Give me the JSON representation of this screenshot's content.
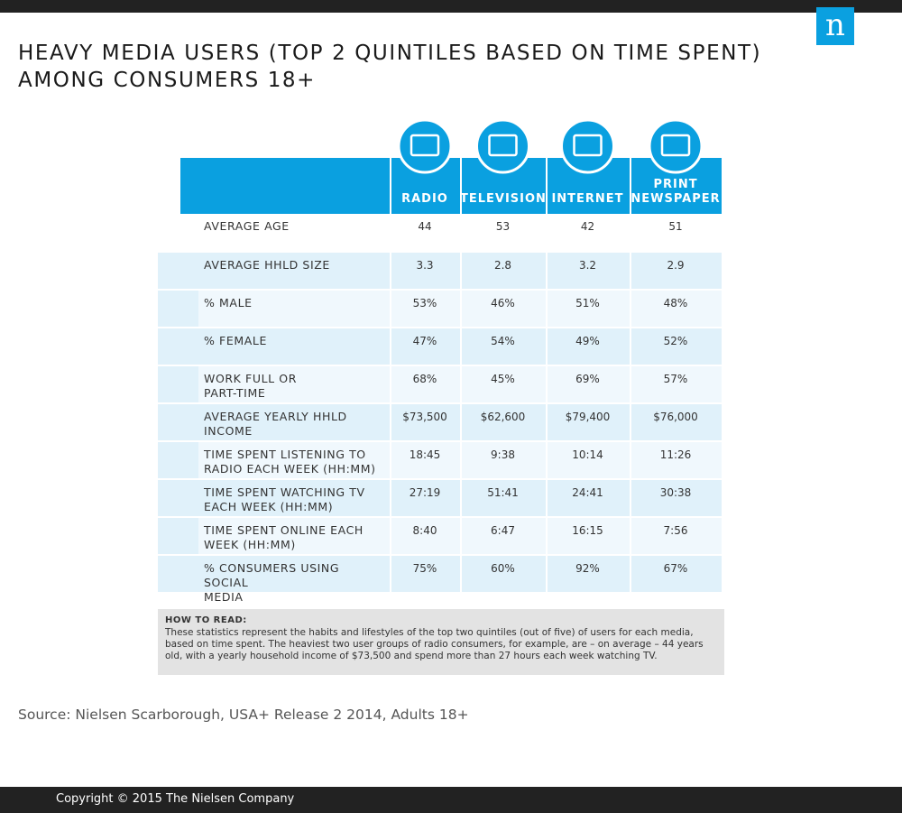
{
  "logo": "n",
  "header": {
    "title": [
      "HEAVY MEDIA USERS (TOP 2 QUINTILES BASED ON TIME SPENT)",
      "AMONG CONSUMERS 18+"
    ]
  },
  "table": {
    "columns": [
      [
        "RADIO"
      ],
      [
        "TELEVISION"
      ],
      [
        "INTERNET"
      ],
      [
        "PRINT",
        "NEWSPAPER"
      ]
    ],
    "rows": [
      {
        "label": [
          "AVERAGE AGE"
        ],
        "values": [
          "44",
          "53",
          "42",
          "51"
        ]
      },
      {
        "label": [
          "AVERAGE HHLD SIZE"
        ],
        "values": [
          "3.3",
          "2.8",
          "3.2",
          "2.9"
        ]
      },
      {
        "label": [
          "% MALE"
        ],
        "values": [
          "53%",
          "46%",
          "51%",
          "48%"
        ]
      },
      {
        "label": [
          "% FEMALE"
        ],
        "values": [
          "47%",
          "54%",
          "49%",
          "52%"
        ]
      },
      {
        "label": [
          "WORK FULL OR",
          "PART-TIME"
        ],
        "values": [
          "68%",
          "45%",
          "69%",
          "57%"
        ]
      },
      {
        "label": [
          "AVERAGE YEARLY HHLD",
          "INCOME"
        ],
        "values": [
          "$73,500",
          "$62,600",
          "$79,400",
          "$76,000"
        ]
      },
      {
        "label": [
          "TIME SPENT LISTENING TO",
          "RADIO EACH WEEK (HH:MM)"
        ],
        "values": [
          "18:45",
          "9:38",
          "10:14",
          "11:26"
        ]
      },
      {
        "label": [
          "TIME SPENT WATCHING TV",
          "EACH WEEK (HH:MM)"
        ],
        "values": [
          "27:19",
          "51:41",
          "24:41",
          "30:38"
        ]
      },
      {
        "label": [
          "TIME SPENT ONLINE EACH",
          "WEEK (HH:MM)"
        ],
        "values": [
          "8:40",
          "6:47",
          "16:15",
          "7:56"
        ]
      },
      {
        "label": [
          "% CONSUMERS USING SOCIAL",
          "MEDIA"
        ],
        "values": [
          "75%",
          "60%",
          "92%",
          "67%"
        ]
      }
    ]
  },
  "note": {
    "title": "HOW TO READ:",
    "text": "These statistics represent the habits and lifestyles of the top two quintiles (out of five) of users for each media, based on time spent. The heaviest two user groups of radio consumers, for example, are – on average – 44 years old, with a yearly household income of $73,500 and spend more than 27 hours each week watching TV."
  },
  "source": "Source: Nielsen Scarborough, USA+ Release 2 2014, Adults 18+",
  "footer": {
    "copyright": "Copyright © 2015 The Nielsen Company"
  }
}
